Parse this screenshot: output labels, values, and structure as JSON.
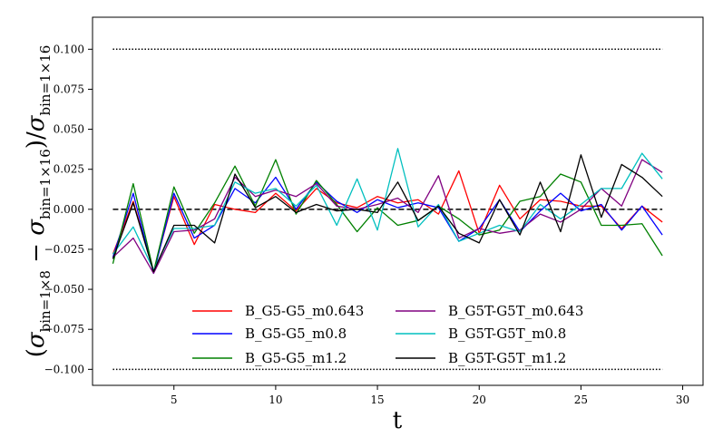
{
  "chart_data": {
    "type": "line",
    "title": "",
    "xlabel": "t",
    "ylabel_parts": {
      "open": "(",
      "sigma1": "σ",
      "sub1": "bin=1×8",
      "minus": " − ",
      "sigma2": "σ",
      "sub2": "bin=1×16",
      "close_slash": ")/",
      "sigma3": "σ",
      "sub3": "bin=1×16"
    },
    "xlim": [
      1,
      31
    ],
    "ylim": [
      -0.11,
      0.12
    ],
    "xticks": [
      5,
      10,
      15,
      20,
      25,
      30
    ],
    "xtick_labels": [
      "5",
      "10",
      "15",
      "20",
      "25",
      "30"
    ],
    "yticks": [
      -0.1,
      -0.075,
      -0.05,
      -0.025,
      0.0,
      0.025,
      0.05,
      0.075,
      0.1
    ],
    "ytick_labels": [
      "−0.100",
      "−0.075",
      "−0.050",
      "−0.025",
      "0.000",
      "0.025",
      "0.050",
      "0.075",
      "0.100"
    ],
    "reference_lines": [
      {
        "y": 0.1,
        "style": "dotted",
        "x_range": [
          2,
          29
        ]
      },
      {
        "y": 0.0,
        "style": "dashed",
        "x_range": [
          2,
          29
        ]
      },
      {
        "y": -0.1,
        "style": "dotted",
        "x_range": [
          2,
          29
        ]
      }
    ],
    "legend_position": "lower-center",
    "x": [
      2,
      3,
      4,
      5,
      6,
      7,
      8,
      9,
      10,
      11,
      12,
      13,
      14,
      15,
      16,
      17,
      18,
      19,
      20,
      21,
      22,
      23,
      24,
      25,
      26,
      27,
      28,
      29
    ],
    "series": [
      {
        "name": "B_G5-G5_m0.643",
        "color": "#ff0000",
        "values": [
          -0.028,
          0.005,
          -0.039,
          0.008,
          -0.022,
          0.003,
          0.0,
          -0.002,
          0.01,
          -0.001,
          0.013,
          0.004,
          0.001,
          0.008,
          0.004,
          0.006,
          -0.003,
          0.024,
          -0.015,
          0.015,
          -0.006,
          0.006,
          0.005,
          0.002,
          0.002,
          -0.012,
          0.002,
          -0.008
        ]
      },
      {
        "name": "B_G5-G5_m0.8",
        "color": "#0000ff",
        "values": [
          -0.03,
          0.01,
          -0.04,
          0.01,
          -0.018,
          -0.01,
          0.013,
          0.004,
          0.02,
          0.0,
          0.017,
          0.005,
          -0.002,
          0.006,
          0.001,
          0.004,
          0.001,
          -0.02,
          -0.012,
          0.006,
          -0.014,
          -0.001,
          0.01,
          -0.001,
          0.003,
          -0.013,
          0.002,
          -0.016
        ]
      },
      {
        "name": "B_G5-G5_m1.2",
        "color": "#008000",
        "values": [
          -0.034,
          0.016,
          -0.039,
          0.014,
          -0.015,
          0.004,
          0.027,
          0.002,
          0.031,
          -0.003,
          0.018,
          0.003,
          -0.014,
          0.001,
          -0.01,
          -0.007,
          0.002,
          -0.006,
          -0.016,
          -0.013,
          0.005,
          0.008,
          0.022,
          0.017,
          -0.01,
          -0.01,
          -0.009,
          -0.029
        ]
      },
      {
        "name": "B_G5T-G5T_m0.643",
        "color": "#800080",
        "values": [
          -0.03,
          -0.018,
          -0.04,
          -0.014,
          -0.013,
          -0.006,
          0.02,
          0.008,
          0.012,
          0.008,
          0.016,
          0.002,
          0.0,
          0.003,
          0.007,
          -0.002,
          0.021,
          -0.018,
          -0.012,
          -0.015,
          -0.013,
          -0.003,
          -0.008,
          0.0,
          0.013,
          0.002,
          0.031,
          0.023
        ]
      },
      {
        "name": "B_G5T-G5T_m0.8",
        "color": "#00bfbf",
        "values": [
          -0.028,
          -0.011,
          -0.038,
          -0.012,
          -0.012,
          -0.01,
          0.017,
          0.01,
          0.013,
          0.002,
          0.015,
          -0.01,
          0.019,
          -0.013,
          0.038,
          -0.011,
          0.003,
          -0.02,
          -0.015,
          -0.01,
          -0.014,
          0.003,
          -0.006,
          0.003,
          0.013,
          0.013,
          0.035,
          0.019
        ]
      },
      {
        "name": "B_G5T-G5T_m1.2",
        "color": "#000000",
        "values": [
          -0.031,
          0.004,
          -0.039,
          -0.01,
          -0.01,
          -0.021,
          0.022,
          0.001,
          0.008,
          -0.002,
          0.003,
          -0.001,
          0.0,
          -0.002,
          0.017,
          -0.007,
          0.002,
          -0.015,
          -0.021,
          0.006,
          -0.016,
          0.017,
          -0.014,
          0.034,
          -0.005,
          0.028,
          0.02,
          0.008
        ]
      }
    ]
  }
}
